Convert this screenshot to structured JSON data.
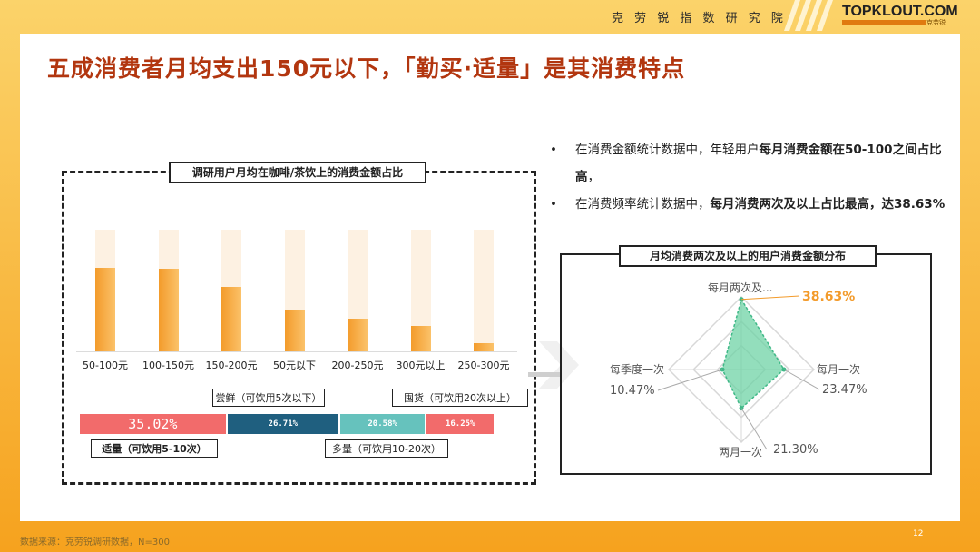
{
  "header": {
    "org_name": "克 劳 锐 指 数 研 究 院",
    "brand": "TOPKLOUT.COM",
    "brand_cn": "克劳锐"
  },
  "title": "五成消费者月均支出150元以下，「勤买·适量」是其消费特点",
  "left_panel": {
    "label": "调研用户月均在咖啡/茶饮上的消费金额占比",
    "bars": [
      {
        "category": "50-100元",
        "value": 0.69
      },
      {
        "category": "100-150元",
        "value": 0.68
      },
      {
        "category": "150-200元",
        "value": 0.53
      },
      {
        "category": "50元以下",
        "value": 0.34
      },
      {
        "category": "200-250元",
        "value": 0.27
      },
      {
        "category": "300元以上",
        "value": 0.21
      },
      {
        "category": "250-300元",
        "value": 0.07
      }
    ],
    "frequency_bar": [
      {
        "value_label": "35.02%",
        "value": 35.02,
        "color": "#f26b6b",
        "label": "适量（可饮用5-10次）"
      },
      {
        "value_label": "26.71%",
        "value": 26.71,
        "color": "#1f5f7f",
        "label": "尝鲜（可饮用5次以下）"
      },
      {
        "value_label": "20.58%",
        "value": 20.58,
        "color": "#66c2bd",
        "label": "多量（可饮用10-20次）"
      },
      {
        "value_label": "16.25%",
        "value": 16.25,
        "color": "#f26b6b",
        "label": "囤货（可饮用20次以上）"
      }
    ]
  },
  "bullets": {
    "b1_normal": "在消费金额统计数据中，年轻用户",
    "b1_bold": "每月消费金额在50-100之间占比高",
    "b1_end": "，",
    "b2_normal": "在消费频率统计数据中，",
    "b2_bold": "每月消费两次及以上占比最高，达38.63%"
  },
  "radar": {
    "label": "月均消费两次及以上的用户消费金额分布",
    "axes": [
      {
        "name": "每月两次及...",
        "value": 38.63,
        "value_label": "38.63%"
      },
      {
        "name": "每月一次",
        "value": 23.47,
        "value_label": "23.47%"
      },
      {
        "name": "两月一次",
        "value": 21.3,
        "value_label": "21.30%"
      },
      {
        "name": "每季度一次",
        "value": 10.47,
        "value_label": "10.47%"
      }
    ],
    "highlight_color": "#f39b2b",
    "fill_color": "#6fd3a6"
  },
  "footer": {
    "source": "数据来源：克劳锐调研数据，N=300",
    "page": "12"
  }
}
